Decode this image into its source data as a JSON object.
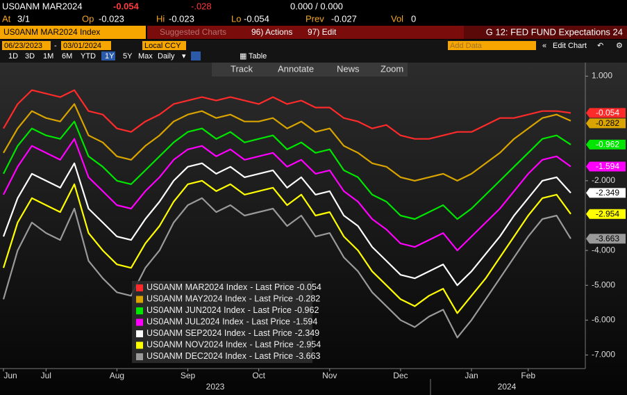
{
  "header": {
    "ticker": "US0ANM MAR2024",
    "last": "-0.054",
    "change": "-.028",
    "bid_ask": "0.000 / 0.000",
    "at_label": "At",
    "at": "3/1",
    "op_label": "Op",
    "op": "-0.023",
    "hi_label": "Hi",
    "hi": "-0.023",
    "lo_label": "Lo",
    "lo": "-0.054",
    "prev_label": "Prev",
    "prev": "-0.027",
    "vol_label": "Vol",
    "vol": "0"
  },
  "toolbar": {
    "security": "US0ANM MAR2024 Index",
    "suggested": "Suggested Charts",
    "actions": "96) Actions",
    "edit": "97) Edit",
    "chart_name": "G 12: FED FUND Expectations 24",
    "start_date": "06/23/2023",
    "end_date": "03/01/2024",
    "currency": "Local CCY",
    "add_data": "Add Data",
    "edit_chart": "Edit Chart",
    "periods": [
      "1D",
      "3D",
      "1M",
      "6M",
      "YTD",
      "1Y",
      "5Y",
      "Max"
    ],
    "frequency": "Daily",
    "table": "Table",
    "tools": [
      "Track",
      "Annotate",
      "News",
      "Zoom"
    ]
  },
  "chart_data": {
    "type": "line",
    "categories": [
      "Jun",
      null,
      null,
      "Jul",
      null,
      null,
      null,
      null,
      "Aug",
      null,
      null,
      null,
      null,
      "Sep",
      null,
      null,
      null,
      null,
      "Oct",
      null,
      null,
      null,
      null,
      "Nov",
      null,
      null,
      null,
      null,
      "Dec",
      null,
      null,
      null,
      null,
      "Jan",
      null,
      null,
      null,
      "Feb",
      null,
      null,
      null
    ],
    "years": [
      "2023",
      "2024"
    ],
    "legend_label": "- Last Price",
    "ylim": [
      -7.35,
      1.35
    ],
    "yticks": [
      {
        "value": 1,
        "label": "1.000"
      },
      {
        "value": -2,
        "label": "-2.000"
      },
      {
        "value": -4,
        "label": "-4.000"
      },
      {
        "value": -5,
        "label": "-5.000"
      },
      {
        "value": -6,
        "label": "-6.000"
      },
      {
        "value": -7,
        "label": "-7.000"
      }
    ],
    "series": [
      {
        "name": "US0ANM MAR2024 Index",
        "color": "#ff2a2a",
        "values": [
          -0.5,
          0.2,
          0.6,
          0.5,
          0.4,
          0.6,
          0.0,
          -0.1,
          -0.5,
          -0.6,
          -0.3,
          -0.1,
          0.2,
          0.3,
          0.4,
          0.3,
          0.4,
          0.3,
          0.2,
          0.4,
          0.2,
          0.3,
          0.1,
          0.1,
          -0.2,
          -0.3,
          -0.5,
          -0.4,
          -0.7,
          -0.8,
          -0.8,
          -0.7,
          -0.6,
          -0.6,
          -0.4,
          -0.2,
          -0.2,
          -0.1,
          0.0,
          0.0,
          -0.054
        ]
      },
      {
        "name": "US0ANM MAY2024 Index",
        "color": "#d9a400",
        "values": [
          -1.2,
          -0.5,
          0.0,
          -0.2,
          -0.3,
          0.2,
          -0.7,
          -0.9,
          -1.3,
          -1.4,
          -1.0,
          -0.7,
          -0.3,
          -0.1,
          0.0,
          -0.2,
          -0.1,
          -0.3,
          -0.3,
          -0.2,
          -0.5,
          -0.3,
          -0.6,
          -0.5,
          -1.0,
          -1.2,
          -1.5,
          -1.6,
          -1.9,
          -2.0,
          -1.9,
          -1.8,
          -2.0,
          -1.8,
          -1.5,
          -1.2,
          -0.8,
          -0.5,
          -0.2,
          -0.1,
          -0.282
        ]
      },
      {
        "name": "US0ANM JUN2024 Index",
        "color": "#00e600",
        "values": [
          -1.8,
          -1.0,
          -0.5,
          -0.7,
          -0.8,
          -0.3,
          -1.3,
          -1.6,
          -2.0,
          -2.1,
          -1.7,
          -1.3,
          -0.9,
          -0.6,
          -0.5,
          -0.8,
          -0.6,
          -0.9,
          -0.8,
          -0.7,
          -1.1,
          -0.9,
          -1.2,
          -1.1,
          -1.7,
          -1.9,
          -2.4,
          -2.6,
          -3.0,
          -3.1,
          -2.9,
          -2.7,
          -3.1,
          -2.8,
          -2.4,
          -2.0,
          -1.6,
          -1.2,
          -0.8,
          -0.7,
          -0.962
        ]
      },
      {
        "name": "US0ANM JUL2024 Index",
        "color": "#ff00ff",
        "values": [
          -2.4,
          -1.6,
          -1.0,
          -1.2,
          -1.4,
          -0.8,
          -1.9,
          -2.3,
          -2.7,
          -2.8,
          -2.3,
          -1.9,
          -1.4,
          -1.1,
          -1.0,
          -1.3,
          -1.1,
          -1.4,
          -1.3,
          -1.2,
          -1.6,
          -1.4,
          -1.8,
          -1.7,
          -2.3,
          -2.6,
          -3.1,
          -3.4,
          -3.8,
          -3.9,
          -3.7,
          -3.5,
          -4.0,
          -3.6,
          -3.2,
          -2.8,
          -2.3,
          -1.8,
          -1.4,
          -1.3,
          -1.594
        ]
      },
      {
        "name": "US0ANM SEP2024 Index",
        "color": "#ffffff",
        "values": [
          -3.6,
          -2.5,
          -1.8,
          -2.0,
          -2.2,
          -1.5,
          -2.8,
          -3.2,
          -3.6,
          -3.7,
          -3.1,
          -2.6,
          -2.0,
          -1.6,
          -1.5,
          -1.8,
          -1.6,
          -1.9,
          -1.8,
          -1.7,
          -2.2,
          -1.9,
          -2.4,
          -2.3,
          -3.0,
          -3.3,
          -3.9,
          -4.3,
          -4.7,
          -4.8,
          -4.6,
          -4.4,
          -5.0,
          -4.6,
          -4.1,
          -3.6,
          -3.0,
          -2.5,
          -2.0,
          -1.9,
          -2.349
        ]
      },
      {
        "name": "US0ANM NOV2024 Index",
        "color": "#ffff00",
        "values": [
          -4.5,
          -3.2,
          -2.5,
          -2.7,
          -2.9,
          -2.1,
          -3.5,
          -4.0,
          -4.4,
          -4.5,
          -3.8,
          -3.3,
          -2.6,
          -2.1,
          -2.0,
          -2.3,
          -2.1,
          -2.4,
          -2.3,
          -2.2,
          -2.7,
          -2.4,
          -3.0,
          -2.9,
          -3.6,
          -4.0,
          -4.6,
          -5.0,
          -5.4,
          -5.6,
          -5.3,
          -5.1,
          -5.8,
          -5.3,
          -4.8,
          -4.2,
          -3.6,
          -3.0,
          -2.5,
          -2.4,
          -2.954
        ]
      },
      {
        "name": "US0ANM DEC2024 Index",
        "color": "#9a9a9a",
        "values": [
          -5.4,
          -4.0,
          -3.2,
          -3.5,
          -3.7,
          -2.8,
          -4.3,
          -4.8,
          -5.2,
          -5.3,
          -4.5,
          -4.0,
          -3.2,
          -2.7,
          -2.5,
          -2.9,
          -2.7,
          -3.0,
          -2.9,
          -2.8,
          -3.3,
          -3.0,
          -3.6,
          -3.5,
          -4.2,
          -4.6,
          -5.2,
          -5.6,
          -6.0,
          -6.2,
          -5.9,
          -5.7,
          -6.5,
          -6.0,
          -5.4,
          -4.8,
          -4.2,
          -3.6,
          -3.1,
          -3.0,
          -3.663
        ]
      }
    ]
  }
}
